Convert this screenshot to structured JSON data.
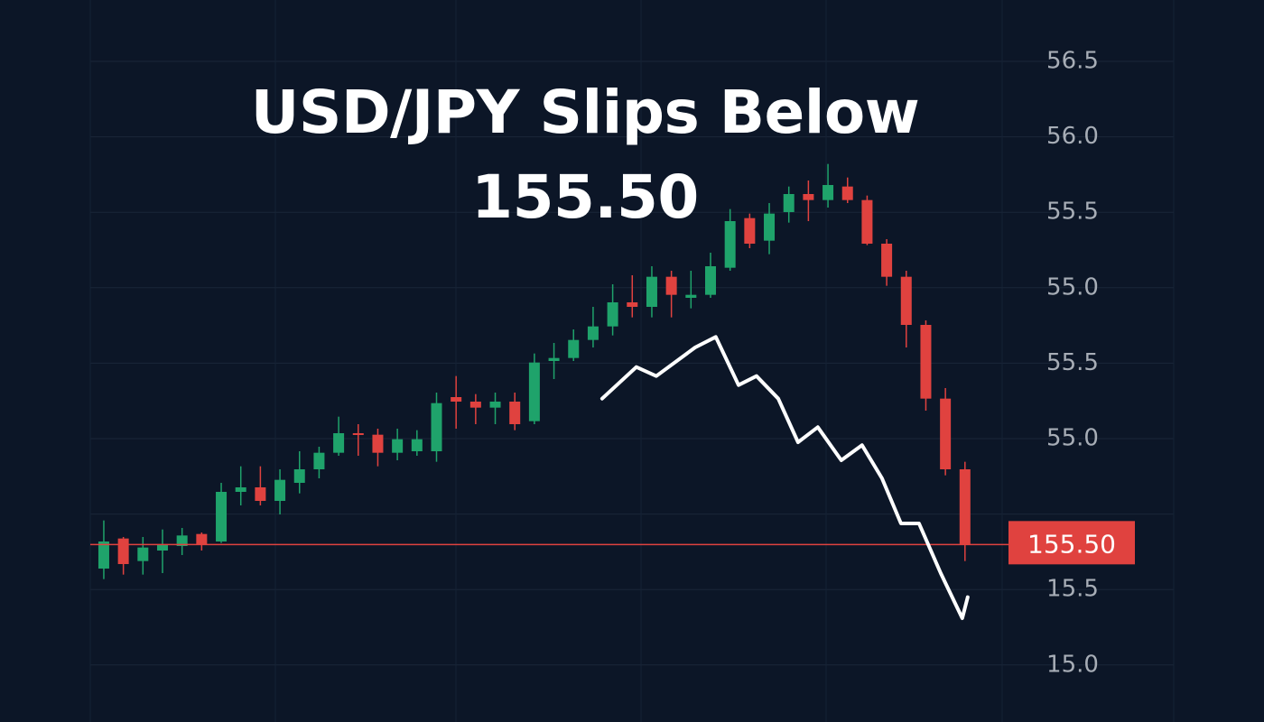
{
  "chart_data": {
    "type": "candlestick",
    "title": "USD/JPY Slips Below 155.50",
    "y_axis_labels": [
      "56.5",
      "56.0",
      "55.5",
      "55.0",
      "55.5",
      "55.0",
      "15.5",
      "15.0"
    ],
    "price_line": {
      "value": 155.5,
      "label": "155.50",
      "color": "#e0423f"
    },
    "up_color": "#1fa36b",
    "down_color": "#e0423f",
    "ylim": [
      154.56,
      158.88
    ],
    "xlim": [
      -0.69,
      45.9
    ],
    "candles": {
      "open": [
        155.34,
        155.54,
        155.39,
        155.46,
        155.49,
        155.57,
        155.52,
        155.85,
        155.88,
        155.79,
        155.91,
        156.0,
        156.11,
        156.24,
        156.23,
        156.11,
        156.12,
        156.12,
        156.48,
        156.45,
        156.41,
        156.45,
        156.32,
        156.72,
        156.74,
        156.86,
        156.95,
        157.11,
        157.08,
        157.28,
        157.14,
        157.16,
        157.34,
        157.67,
        157.52,
        157.71,
        157.83,
        157.79,
        157.88,
        157.79,
        157.5,
        157.28,
        156.96,
        156.47,
        156.0
      ],
      "high": [
        155.66,
        155.55,
        155.55,
        155.6,
        155.61,
        155.58,
        155.91,
        156.02,
        156.02,
        156.0,
        156.12,
        156.15,
        156.35,
        156.3,
        156.27,
        156.27,
        156.26,
        156.51,
        156.62,
        156.5,
        156.51,
        156.51,
        156.77,
        156.84,
        156.93,
        157.08,
        157.23,
        157.29,
        157.35,
        157.32,
        157.32,
        157.44,
        157.73,
        157.7,
        157.77,
        157.88,
        157.92,
        158.03,
        157.94,
        157.82,
        157.53,
        157.32,
        156.99,
        156.54,
        156.05
      ],
      "low": [
        155.27,
        155.3,
        155.3,
        155.31,
        155.43,
        155.46,
        155.51,
        155.76,
        155.76,
        155.7,
        155.84,
        155.94,
        156.09,
        156.09,
        156.02,
        156.06,
        156.09,
        156.05,
        156.27,
        156.3,
        156.3,
        156.26,
        156.3,
        156.6,
        156.72,
        156.81,
        156.89,
        157.01,
        157.01,
        157.01,
        157.07,
        157.14,
        157.32,
        157.47,
        157.43,
        157.64,
        157.65,
        157.74,
        157.77,
        157.49,
        157.22,
        156.81,
        156.39,
        155.96,
        155.39
      ],
      "close": [
        155.52,
        155.37,
        155.48,
        155.5,
        155.56,
        155.5,
        155.85,
        155.88,
        155.79,
        155.93,
        156.0,
        156.11,
        156.24,
        156.23,
        156.11,
        156.2,
        156.2,
        156.44,
        156.45,
        156.41,
        156.45,
        156.3,
        156.71,
        156.74,
        156.86,
        156.95,
        157.11,
        157.08,
        157.28,
        157.16,
        157.16,
        157.35,
        157.65,
        157.5,
        157.7,
        157.83,
        157.79,
        157.89,
        157.79,
        157.5,
        157.28,
        156.96,
        156.47,
        156.0,
        155.5
      ]
    },
    "line": {
      "color": "#ffffff",
      "x": [
        25.46,
        27.21,
        28.23,
        30.21,
        31.27,
        32.43,
        33.35,
        34.46,
        35.47,
        36.48,
        37.68,
        38.74,
        39.76,
        40.73,
        41.65,
        42.76,
        43.86,
        44.14
      ],
      "y": [
        156.47,
        156.68,
        156.62,
        156.81,
        156.88,
        156.56,
        156.62,
        156.47,
        156.18,
        156.28,
        156.06,
        156.16,
        155.94,
        155.64,
        155.64,
        155.31,
        155.01,
        155.15
      ]
    }
  }
}
